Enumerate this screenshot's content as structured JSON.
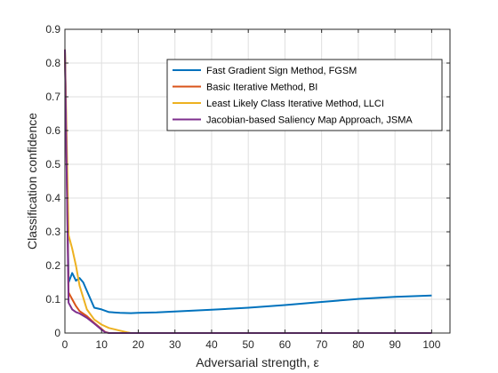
{
  "chart_data": {
    "type": "line",
    "xlabel": "Adversarial strength, ε",
    "ylabel": "Classification confidence",
    "xlim": [
      0,
      105
    ],
    "ylim": [
      0,
      0.9
    ],
    "xticks": [
      0,
      10,
      20,
      30,
      40,
      50,
      60,
      70,
      80,
      90,
      100
    ],
    "yticks": [
      0,
      0.1,
      0.2,
      0.3,
      0.4,
      0.5,
      0.6,
      0.7,
      0.8,
      0.9
    ],
    "xtick_labels": [
      "0",
      "10",
      "20",
      "30",
      "40",
      "50",
      "60",
      "70",
      "80",
      "90",
      "100"
    ],
    "ytick_labels": [
      "0",
      "0.1",
      "0.2",
      "0.3",
      "0.4",
      "0.5",
      "0.6",
      "0.7",
      "0.8",
      "0.9"
    ],
    "grid": true,
    "legend_position": "top-right",
    "series": [
      {
        "name": "Fast Gradient Sign Method, FGSM",
        "color": "#0072BD",
        "x": [
          0,
          1,
          2,
          3,
          4,
          5,
          6,
          8,
          10,
          12,
          15,
          18,
          20,
          25,
          30,
          40,
          50,
          60,
          70,
          80,
          90,
          100
        ],
        "y": [
          0.84,
          0.15,
          0.178,
          0.155,
          0.163,
          0.15,
          0.125,
          0.075,
          0.07,
          0.062,
          0.06,
          0.059,
          0.06,
          0.061,
          0.064,
          0.069,
          0.075,
          0.083,
          0.092,
          0.101,
          0.107,
          0.111
        ]
      },
      {
        "name": "Basic Iterative Method, BI",
        "color": "#D95319",
        "x": [
          0,
          1,
          2,
          3,
          4,
          6,
          8,
          10,
          11,
          12,
          15,
          20,
          30,
          40,
          50,
          60,
          70,
          80,
          90,
          100
        ],
        "y": [
          0.84,
          0.12,
          0.1,
          0.08,
          0.065,
          0.05,
          0.03,
          0.012,
          0.003,
          0,
          0,
          0,
          0,
          0,
          0,
          0,
          0,
          0,
          0,
          0
        ]
      },
      {
        "name": "Least Likely Class Iterative Method, LLCI",
        "color": "#EDB120",
        "x": [
          0,
          1,
          2,
          3,
          4,
          6,
          8,
          10,
          12,
          15,
          17,
          18,
          20,
          30,
          40,
          50,
          60,
          70,
          80,
          90,
          100
        ],
        "y": [
          0.84,
          0.29,
          0.25,
          0.2,
          0.14,
          0.07,
          0.04,
          0.025,
          0.015,
          0.007,
          0.002,
          0,
          0,
          0,
          0,
          0,
          0,
          0,
          0,
          0,
          0
        ]
      },
      {
        "name": "Jacobian-based Saliency Map Approach, JSMA",
        "color": "#7E2F8E",
        "x": [
          0,
          1,
          2,
          3,
          4,
          6,
          8,
          10,
          11,
          12,
          15,
          20,
          30,
          40,
          50,
          60,
          70,
          80,
          90,
          100
        ],
        "y": [
          0.84,
          0.09,
          0.07,
          0.062,
          0.058,
          0.045,
          0.028,
          0.01,
          0.002,
          0,
          0,
          0,
          0,
          0,
          0,
          0,
          0,
          0,
          0,
          0
        ]
      }
    ]
  }
}
